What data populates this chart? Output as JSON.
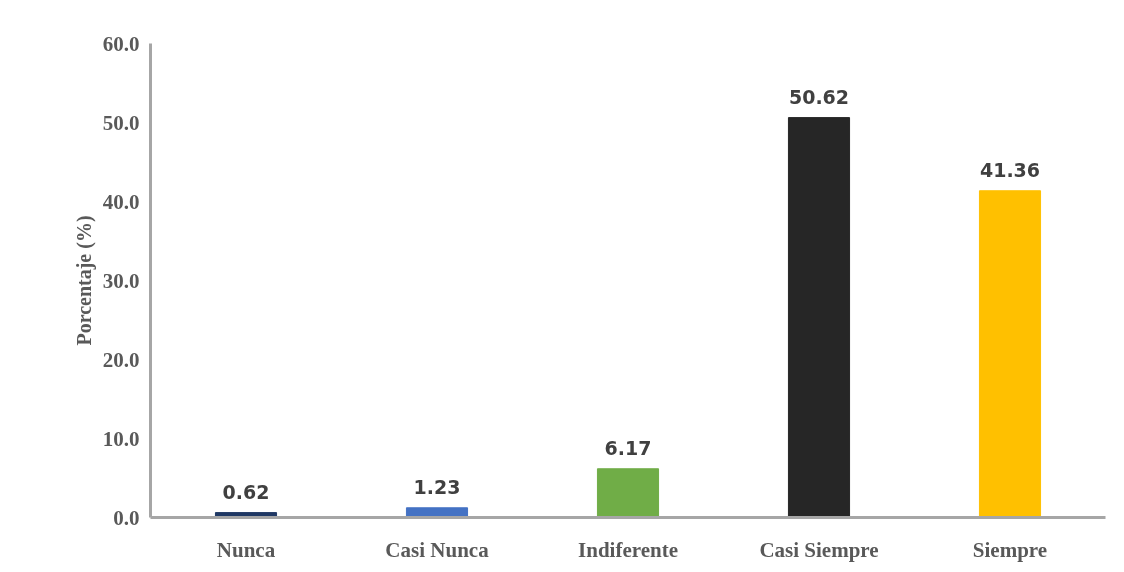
{
  "chart_data": {
    "type": "bar",
    "ylabel": "Porcentaje (%)",
    "categories": [
      "Nunca",
      "Casi Nunca",
      "Indiferente",
      "Casi Siempre",
      "Siempre"
    ],
    "values": [
      0.62,
      1.23,
      6.17,
      50.62,
      41.36
    ],
    "colors": [
      "#1f3864",
      "#4472c4",
      "#70ad47",
      "#262626",
      "#ffc000"
    ],
    "ylim": [
      0,
      60
    ],
    "yticks": [
      {
        "value": 0,
        "label": "0.0"
      },
      {
        "value": 10,
        "label": "10.0"
      },
      {
        "value": 20,
        "label": "20.0"
      },
      {
        "value": 30,
        "label": "30.0"
      },
      {
        "value": 40,
        "label": "40.0"
      },
      {
        "value": 50,
        "label": "50.0"
      },
      {
        "value": 60,
        "label": "60.0"
      }
    ],
    "data_labels": true,
    "grid": false
  }
}
